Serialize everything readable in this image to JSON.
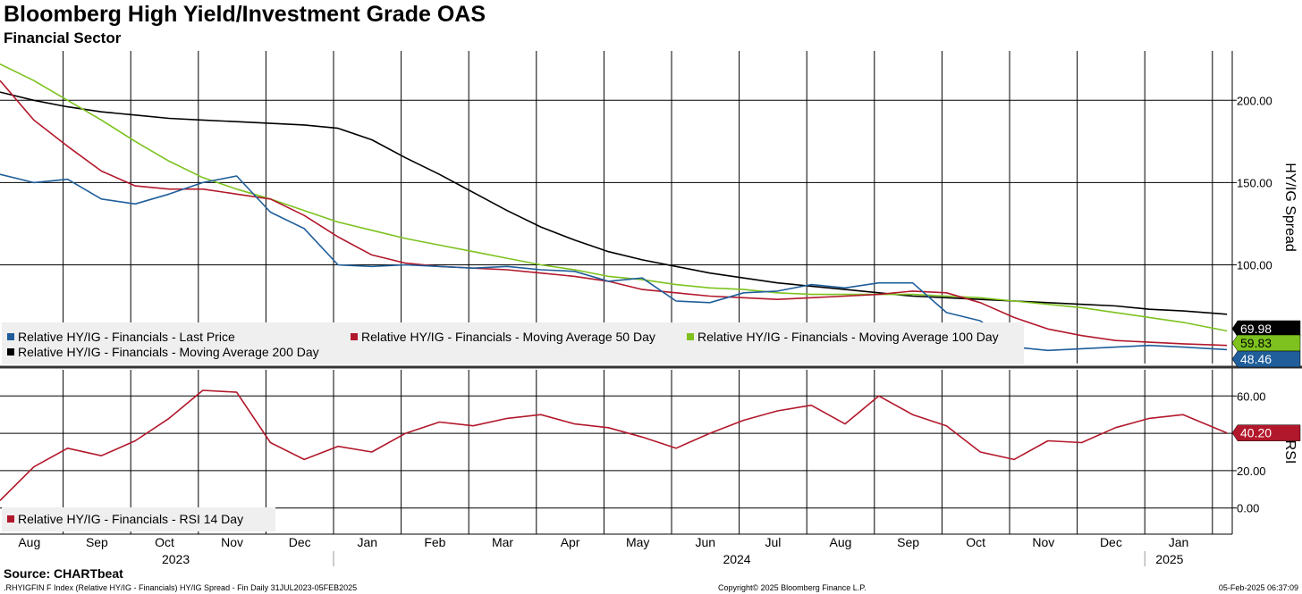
{
  "header": {
    "title": "Bloomberg High Yield/Investment Grade OAS",
    "subtitle": "Financial Sector"
  },
  "footer": {
    "source": "Source: CHARTbeat",
    "left": ".RHYIGFIN F Index (Relative HY/IG - Financials) HY/IG Spread - Fin  Daily 31JUL2023-05FEB2025",
    "copyright": "Copyright© 2025 Bloomberg Finance L.P.",
    "timestamp": "05-Feb-2025 06:37:09"
  },
  "colors": {
    "last_price": "#1f5e9a",
    "ma50": "#b2182b",
    "ma100": "#7dc21f",
    "ma200": "#000000",
    "rsi": "#b2182b"
  },
  "chart_data": [
    {
      "type": "line",
      "panel": "top",
      "ylabel": "HY/IG Spread",
      "ylim": [
        40,
        230
      ],
      "yticks": [
        100,
        150,
        200
      ],
      "ytick_labels": [
        "100.00",
        "150.00",
        "200.00"
      ],
      "x_months": [
        "Aug",
        "Sep",
        "Oct",
        "Nov",
        "Dec",
        "Jan",
        "Feb",
        "Mar",
        "Apr",
        "May",
        "Jun",
        "Jul",
        "Aug",
        "Sep",
        "Oct",
        "Nov",
        "Dec",
        "Jan"
      ],
      "x_years": [
        "2023",
        "2024",
        "2025"
      ],
      "x": [
        0,
        0.5,
        1,
        1.5,
        2,
        2.5,
        3,
        3.5,
        4,
        4.5,
        5,
        5.5,
        6,
        6.5,
        7,
        7.5,
        8,
        8.5,
        9,
        9.5,
        10,
        10.5,
        11,
        11.5,
        12,
        12.5,
        13,
        13.5,
        14,
        14.5,
        15,
        15.5,
        16,
        16.5,
        17,
        17.5,
        18.15
      ],
      "series": [
        {
          "name": "Relative HY/IG - Financials - Last Price",
          "color_key": "last_price",
          "last_value": "48.46",
          "values": [
            155,
            150,
            152,
            140,
            137,
            143,
            150,
            154,
            132,
            122,
            100,
            99,
            100,
            99,
            98,
            99,
            97,
            96,
            90,
            92,
            78,
            77,
            83,
            84,
            88,
            86,
            89,
            89,
            71,
            66,
            50,
            48,
            49,
            50,
            51,
            50,
            48.46
          ]
        },
        {
          "name": "Relative HY/IG - Financials - Moving Average 50 Day",
          "color_key": "ma50",
          "last_value": "",
          "values": [
            212,
            188,
            172,
            157,
            148,
            146,
            146,
            143,
            140,
            130,
            117,
            106,
            101,
            99,
            98,
            97,
            95,
            93,
            90,
            85,
            83,
            81,
            80,
            79,
            80,
            81,
            82,
            84,
            83,
            77,
            68,
            61,
            57,
            54,
            53,
            52,
            51
          ]
        },
        {
          "name": "Relative HY/IG - Financials - Moving Average 100 Day",
          "color_key": "ma100",
          "last_value": "59.83",
          "values": [
            222,
            212,
            200,
            188,
            175,
            163,
            153,
            146,
            140,
            133,
            126,
            121,
            116,
            112,
            108,
            104,
            100,
            97,
            93,
            91,
            88,
            86,
            85,
            83,
            82,
            82,
            82,
            82,
            81,
            80,
            78,
            76,
            74,
            71,
            68,
            65,
            59.83
          ]
        },
        {
          "name": "Relative HY/IG - Financials - Moving Average 200 Day",
          "color_key": "ma200",
          "last_value": "69.98",
          "values": [
            205,
            200,
            196,
            193,
            191,
            189,
            188,
            187,
            186,
            185,
            183,
            176,
            165,
            155,
            144,
            133,
            123,
            115,
            108,
            103,
            99,
            95,
            92,
            89,
            87,
            85,
            83,
            81,
            80,
            79,
            78,
            77,
            76,
            75,
            73,
            72,
            69.98
          ]
        }
      ]
    },
    {
      "type": "line",
      "panel": "bottom",
      "ylabel": "RSI",
      "ylim": [
        -14,
        74
      ],
      "yticks": [
        0,
        20,
        40,
        60
      ],
      "ytick_labels": [
        "0.00",
        "20.00",
        "40.00",
        "60.00"
      ],
      "x": [
        0,
        0.5,
        1,
        1.5,
        2,
        2.5,
        3,
        3.5,
        4,
        4.5,
        5,
        5.5,
        6,
        6.5,
        7,
        7.5,
        8,
        8.5,
        9,
        9.5,
        10,
        10.5,
        11,
        11.5,
        12,
        12.5,
        13,
        13.5,
        14,
        14.5,
        15,
        15.5,
        16,
        16.5,
        17,
        17.5,
        18.15
      ],
      "series": [
        {
          "name": "Relative HY/IG - Financials - RSI 14 Day",
          "color_key": "rsi",
          "last_value": "40.20",
          "values": [
            4,
            22,
            32,
            28,
            36,
            48,
            63,
            62,
            35,
            26,
            33,
            30,
            40,
            46,
            44,
            48,
            50,
            45,
            43,
            38,
            32,
            40,
            47,
            52,
            55,
            45,
            60,
            50,
            44,
            30,
            26,
            36,
            35,
            43,
            48,
            50,
            40.2
          ]
        }
      ]
    }
  ]
}
